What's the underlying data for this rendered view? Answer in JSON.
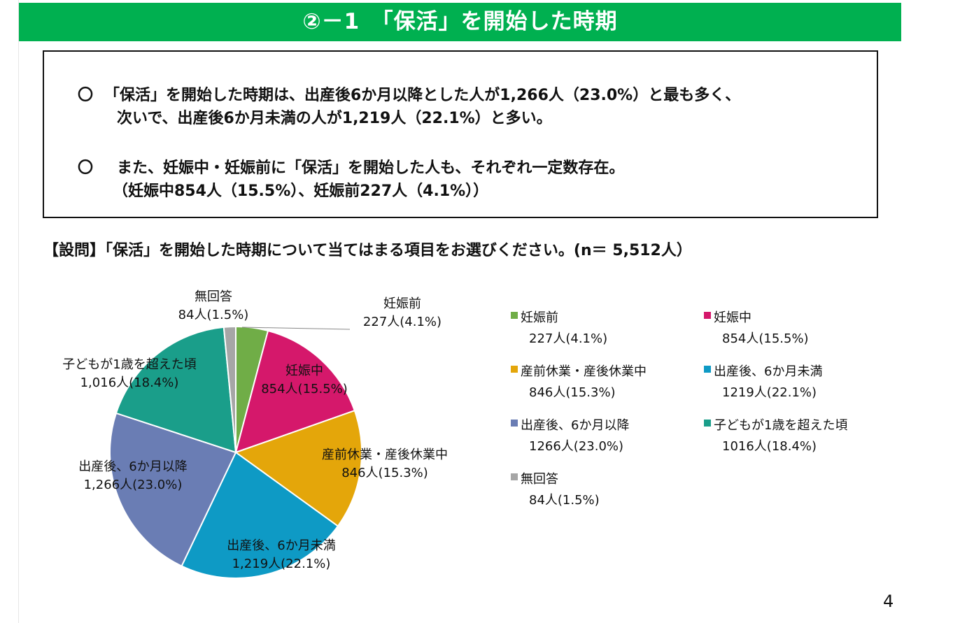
{
  "title": "②－1　「保活」を開始した時期",
  "summary": {
    "bullet_mark": "〇",
    "point1_line1": "「保活」を開始した時期は、出産後6か月以降とした人が1,266人（23.0%）と最も多く、",
    "point1_line2": "次いで、出産後6か月未満の人が1,219人（22.1%）と多い。",
    "point2_line1": "また、妊娠中・妊娠前に「保活」を開始した人も、それぞれ一定数存在。",
    "point2_line2": "（妊娠中854人（15.5%）、妊娠前227人（4.1%））"
  },
  "question": "【設問】「保活」を開始した時期について当てはまる項目をお選びください。(n＝ 5,512人）",
  "chart_data": {
    "type": "pie",
    "start": "12 o'clock",
    "direction": "clockwise",
    "slices": [
      {
        "name": "妊娠前",
        "value": 227,
        "percent": 4.1,
        "color": "#70ad47",
        "label_value": "227人(4.1%)",
        "legend_value": "227人(4.1%)"
      },
      {
        "name": "妊娠中",
        "value": 854,
        "percent": 15.5,
        "color": "#d5186b",
        "label_value": "854人(15.5%)",
        "legend_value": "854人(15.5%)"
      },
      {
        "name": "産前休業・産後休業中",
        "value": 846,
        "percent": 15.3,
        "color": "#e4a60a",
        "label_value": "846人(15.3%)",
        "legend_value": "846人(15.3%)"
      },
      {
        "name": "出産後、6か月未満",
        "value": 1219,
        "percent": 22.1,
        "color": "#0e9ac5",
        "label_value": "1,219人(22.1%)",
        "legend_value": "1219人(22.1%)"
      },
      {
        "name": "出産後、6か月以降",
        "value": 1266,
        "percent": 23.0,
        "color": "#6a7db4",
        "label_value": "1,266人(23.0%)",
        "legend_value": "1266人(23.0%)"
      },
      {
        "name": "子どもが1歳を超えた頃",
        "value": 1016,
        "percent": 18.4,
        "color": "#1a9e8a",
        "label_value": "1,016人(18.4%)",
        "legend_value": "1016人(18.4%)"
      },
      {
        "name": "無回答",
        "value": 84,
        "percent": 1.5,
        "color": "#a6a6a6",
        "label_value": "84人(1.5%)",
        "legend_value": "84人(1.5%)"
      }
    ]
  },
  "page_number": "4"
}
